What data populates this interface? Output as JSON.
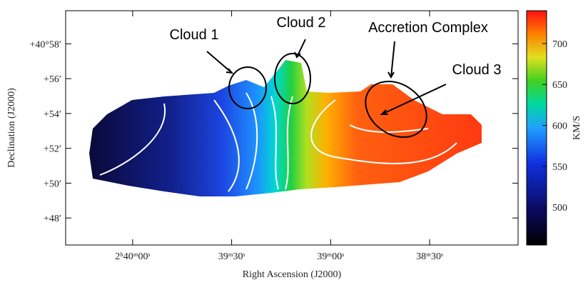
{
  "chart_data": {
    "type": "image",
    "xlabel": "Right Ascension (J2000)",
    "ylabel": "Declination (J2000)",
    "xlim": [
      140.3,
      3.2
    ],
    "xticks": [
      {
        "value": 120,
        "label": "2ʰ40ᵐ00ˢ"
      },
      {
        "value": 90,
        "label": "39ᵐ30ˢ"
      },
      {
        "value": 60,
        "label": "39ᵐ00ˢ"
      },
      {
        "value": 30,
        "label": "38ᵐ30ˢ"
      }
    ],
    "ylim": [
      46.45,
      59.9
    ],
    "yticks": [
      {
        "value": 58,
        "label": "+40°58′"
      },
      {
        "value": 56,
        "label": "+56′"
      },
      {
        "value": 54,
        "label": "+54′"
      },
      {
        "value": 52,
        "label": "+52′"
      },
      {
        "value": 50,
        "label": "+50′"
      },
      {
        "value": 48,
        "label": "+48′"
      }
    ],
    "colorbar": {
      "label": "KM/S",
      "clim": [
        454,
        740
      ],
      "ticks": [
        500,
        550,
        600,
        650,
        700
      ]
    },
    "annotations": [
      "Cloud 1",
      "Cloud 2",
      "Accretion Complex",
      "Cloud 3"
    ]
  }
}
